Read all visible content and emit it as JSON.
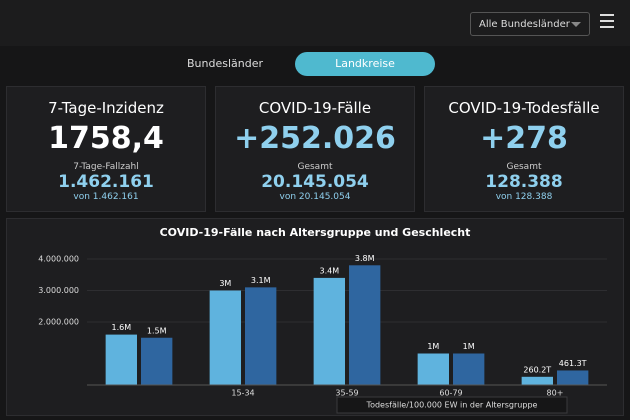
{
  "header": {
    "region_select": "Alle Bundesländer"
  },
  "tabs": [
    "Bundesländer",
    "Landkreise"
  ],
  "cards": [
    {
      "title": "7-Tage-Inzidenz",
      "value": "1758,4",
      "sub_label": "7-Tage-Fallzahl",
      "sub_value": "1.462.161",
      "note": "von 1.462.161"
    },
    {
      "title": "COVID-19-Fälle",
      "value": "+252.026",
      "sub_label": "Gesamt",
      "sub_value": "20.145.054",
      "note": "von 20.145.054"
    },
    {
      "title": "COVID-19-Todesfälle",
      "value": "+278",
      "sub_label": "Gesamt",
      "sub_value": "128.388",
      "note": "von 128.388"
    }
  ],
  "chart_data": {
    "type": "bar",
    "title": "COVID-19-Fälle nach Altersgruppe und Geschlecht",
    "categories": [
      null,
      "15-34",
      "35-59",
      "60-79",
      "80+"
    ],
    "series": [
      {
        "color": "#5fb3de",
        "values": [
          1600000,
          3000000,
          3400000,
          1000000,
          260200
        ],
        "value_labels": [
          "1.6M",
          "3M",
          "3.4M",
          "1M",
          "260.2T"
        ]
      },
      {
        "color": "#2f66a0",
        "values": [
          1500000,
          3100000,
          3800000,
          1000000,
          461300
        ],
        "value_labels": [
          "1.5M",
          "3.1M",
          "3.8M",
          "1M",
          "461.3T"
        ]
      }
    ],
    "ylim": [
      0,
      4000000
    ],
    "yticks": [
      {
        "value": 2000000,
        "label": "2.000.000"
      },
      {
        "value": 3000000,
        "label": "3.000.000"
      },
      {
        "value": 4000000,
        "label": "4.000.000"
      }
    ]
  },
  "bottom_panel_title": "Todesfälle/100.000 EW in der Altersgruppe"
}
